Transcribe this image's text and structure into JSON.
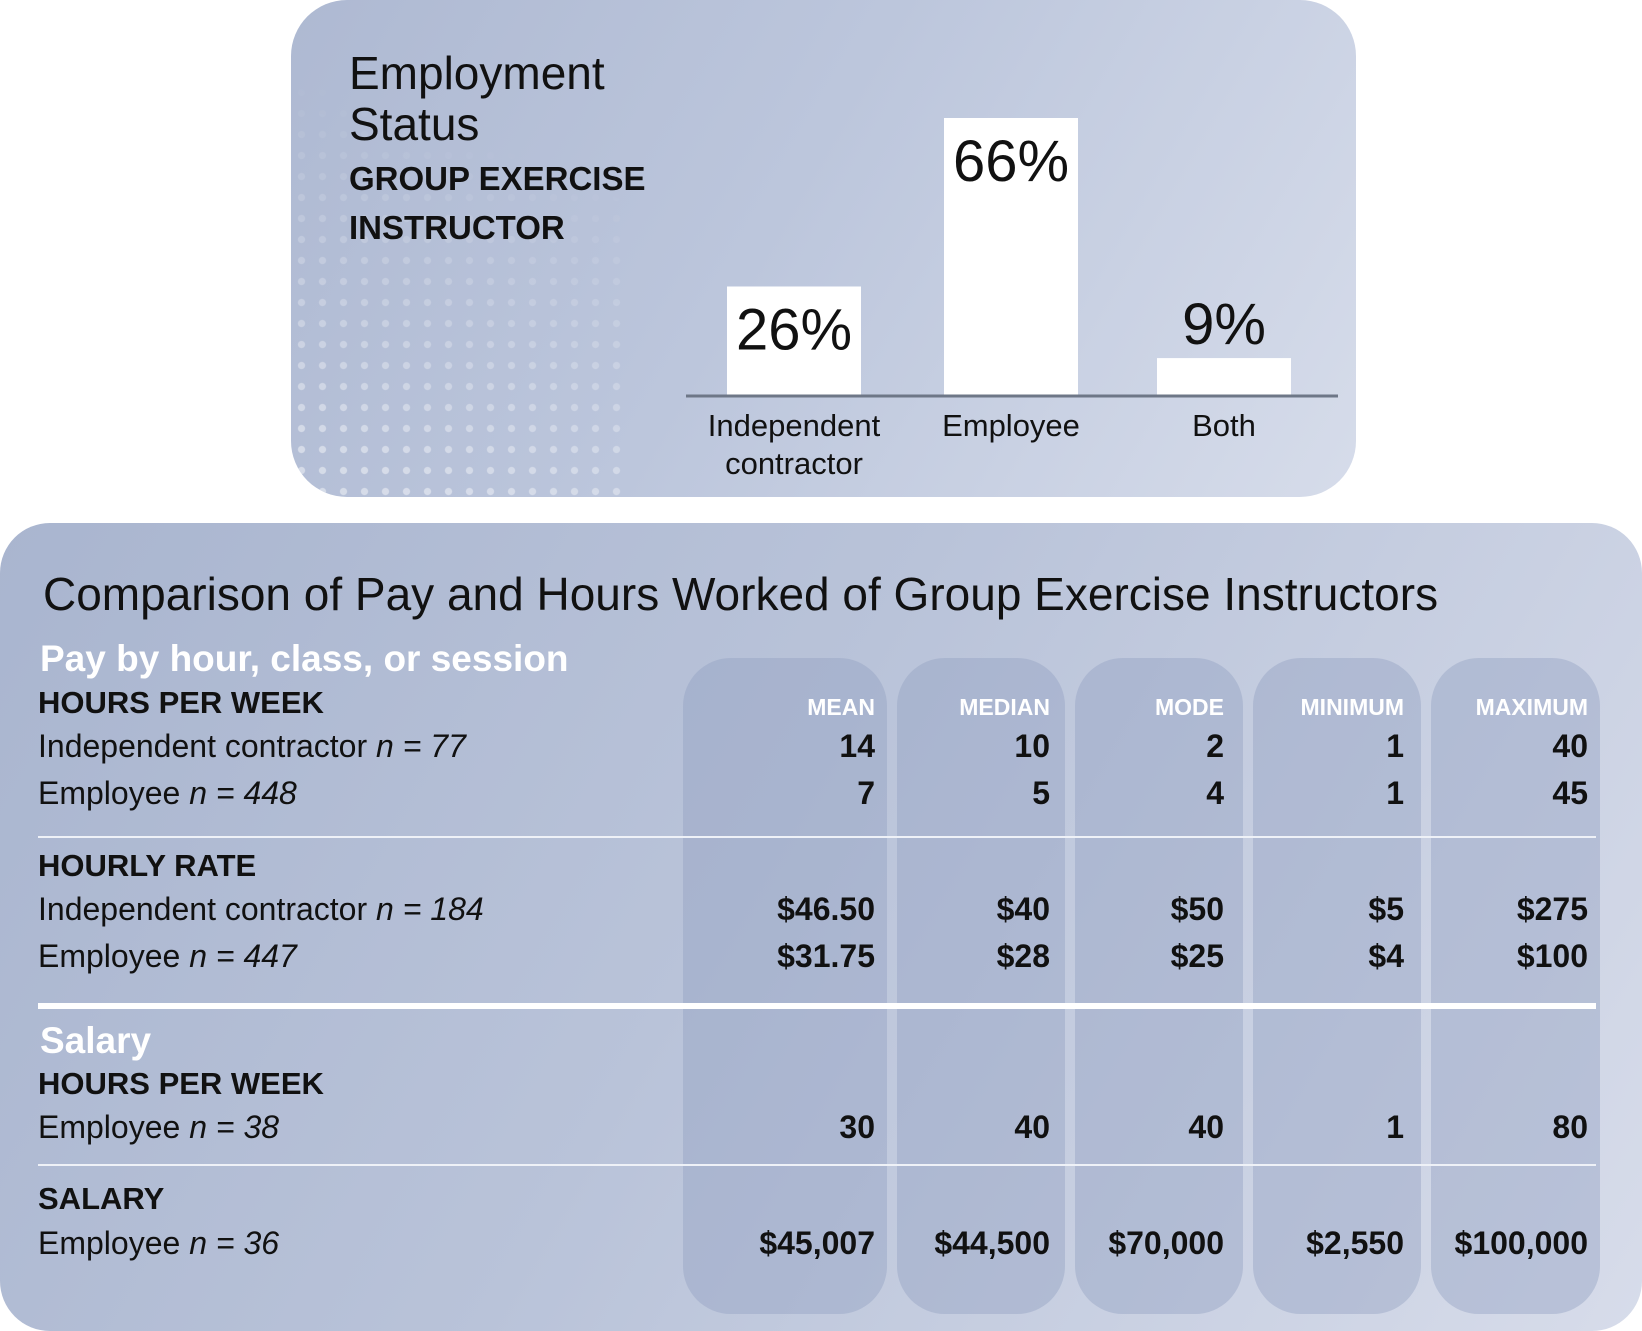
{
  "employment_status": {
    "title": "Employment Status",
    "subtitle": "GROUP EXERCISE INSTRUCTOR"
  },
  "chart_data": {
    "type": "bar",
    "title": "Employment Status",
    "subtitle": "GROUP EXERCISE INSTRUCTOR",
    "categories": [
      "Independent contractor",
      "Employee",
      "Both"
    ],
    "category_lines": [
      [
        "Independent",
        "contractor"
      ],
      [
        "Employee"
      ],
      [
        "Both"
      ]
    ],
    "values": [
      26,
      66,
      9
    ],
    "value_labels": [
      "26%",
      "66%",
      "9%"
    ],
    "unit": "%",
    "ylim": [
      0,
      66
    ],
    "bar_color": "#ffffff",
    "grid": false,
    "legend": "none"
  },
  "comparison": {
    "title": "Comparison of Pay and Hours Worked of Group Exercise Instructors",
    "columns": [
      "MEAN",
      "MEDIAN",
      "MODE",
      "MINIMUM",
      "MAXIMUM"
    ],
    "pay_section": {
      "label": "Pay by hour, class, or session",
      "hours_per_week": {
        "label": "HOURS PER WEEK",
        "rows": [
          {
            "label": "Independent contractor",
            "n": "n = 77",
            "values": [
              "14",
              "10",
              "2",
              "1",
              "40"
            ]
          },
          {
            "label": "Employee",
            "n": "n = 448",
            "values": [
              "7",
              "5",
              "4",
              "1",
              "45"
            ]
          }
        ]
      },
      "hourly_rate": {
        "label": "HOURLY RATE",
        "rows": [
          {
            "label": "Independent contractor",
            "n": "n = 184",
            "values": [
              "$46.50",
              "$40",
              "$50",
              "$5",
              "$275"
            ]
          },
          {
            "label": "Employee",
            "n": "n = 447",
            "values": [
              "$31.75",
              "$28",
              "$25",
              "$4",
              "$100"
            ]
          }
        ]
      }
    },
    "salary_section": {
      "label": "Salary",
      "hours_per_week": {
        "label": "HOURS PER WEEK",
        "rows": [
          {
            "label": "Employee",
            "n": "n = 38",
            "values": [
              "30",
              "40",
              "40",
              "1",
              "80"
            ]
          }
        ]
      },
      "salary": {
        "label": "SALARY",
        "rows": [
          {
            "label": "Employee",
            "n": "n = 36",
            "values": [
              "$45,007",
              "$44,500",
              "$70,000",
              "$2,550",
              "$100,000"
            ]
          }
        ]
      }
    }
  }
}
